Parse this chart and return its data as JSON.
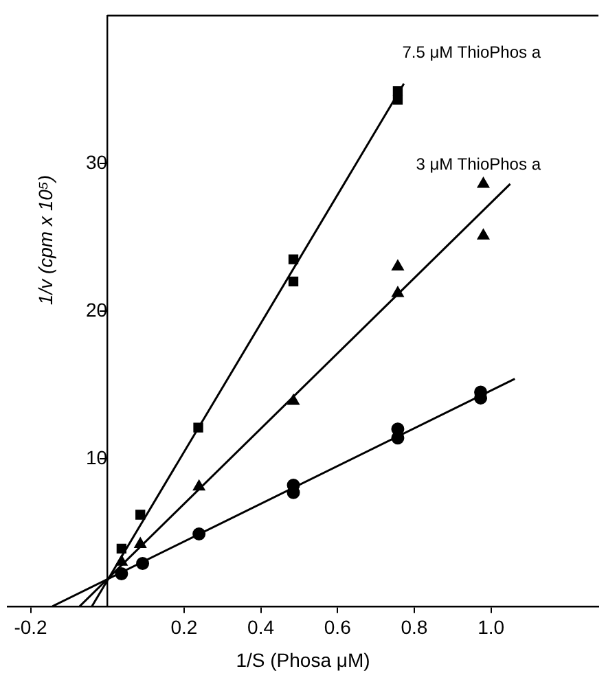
{
  "chart_data": {
    "type": "scatter",
    "xlabel": "1/S (Phosa μM)",
    "ylabel": "1/v (cpm x 10⁵)",
    "xlim": [
      -0.26,
      1.28
    ],
    "ylim": [
      0,
      40
    ],
    "xticks": [
      -0.2,
      0.2,
      0.4,
      0.6,
      0.8,
      {
        "value": 1,
        "label": "1.0"
      }
    ],
    "yticks": [
      10,
      20,
      30
    ],
    "grid": false,
    "legend": false,
    "annotations": [
      "7.5 μM ThioPhos a",
      "3 μM ThioPhos a"
    ],
    "series": [
      {
        "type": "scatter",
        "marker": "square",
        "color": "#000000",
        "x": [
          0.037,
          0.086,
          0.237,
          0.485,
          0.485,
          0.757,
          0.757
        ],
        "values": [
          3.9,
          6.2,
          12.1,
          23.5,
          22.0,
          34.3,
          34.9
        ]
      },
      {
        "type": "scatter",
        "marker": "triangle",
        "color": "#000000",
        "x": [
          0.037,
          0.086,
          0.239,
          0.485,
          0.757,
          0.757,
          0.98,
          0.98
        ],
        "values": [
          3.0,
          4.2,
          8.1,
          13.9,
          23.0,
          21.2,
          28.6,
          25.1
        ]
      },
      {
        "type": "scatter",
        "marker": "circle",
        "color": "#000000",
        "x": [
          0.037,
          0.092,
          0.239,
          0.485,
          0.485,
          0.757,
          0.757,
          0.973,
          0.973
        ],
        "values": [
          2.2,
          2.9,
          4.9,
          8.2,
          7.7,
          12.0,
          11.4,
          14.5,
          14.1
        ]
      },
      {
        "type": "line",
        "marker": "none",
        "color": "#000000",
        "x": [
          -0.04,
          0.773
        ],
        "values": [
          0,
          35.4
        ]
      },
      {
        "type": "line",
        "marker": "none",
        "color": "#000000",
        "x": [
          -0.072,
          1.05
        ],
        "values": [
          0,
          28.6
        ]
      },
      {
        "type": "line",
        "marker": "none",
        "color": "#000000",
        "x": [
          -0.143,
          1.062
        ],
        "values": [
          0,
          15.4
        ]
      }
    ]
  }
}
